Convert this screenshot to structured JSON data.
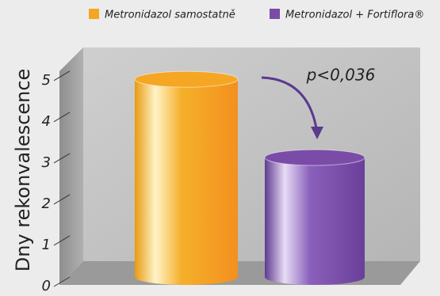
{
  "chart_data": {
    "type": "bar",
    "y_label": "Dny rekonvalescence",
    "annotation": "p<0,036",
    "series": [
      {
        "name": "Metronidazol samostatně",
        "color": "#f5a623",
        "values": [
          4.8
        ]
      },
      {
        "name": "Metronidazol + Fortiflora®",
        "color": "#7a4ca8",
        "values": [
          2.9
        ]
      }
    ],
    "ylim": [
      0,
      5.4
    ],
    "yticks": [
      0,
      1,
      2,
      3,
      4,
      5
    ],
    "legend": "top-right"
  }
}
